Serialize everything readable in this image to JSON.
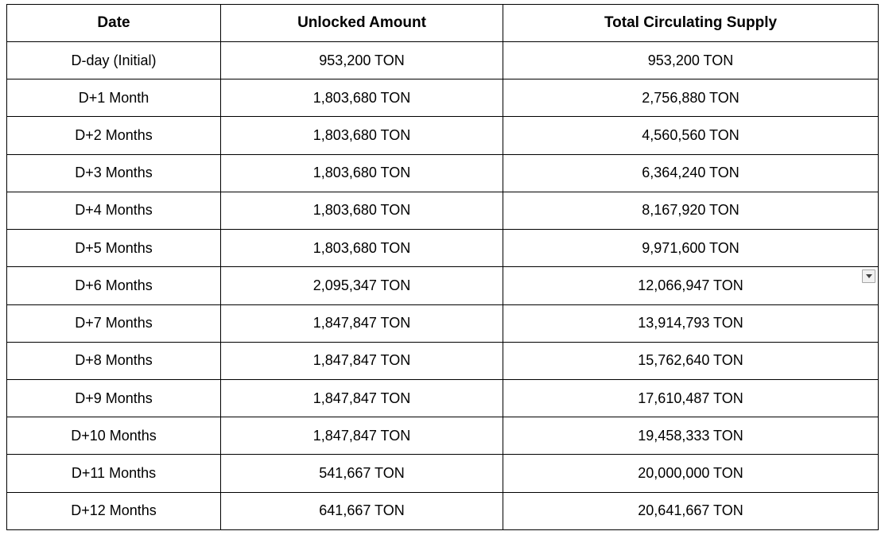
{
  "table": {
    "columns": [
      {
        "key": "date",
        "label": "Date"
      },
      {
        "key": "unlocked_amount",
        "label": "Unlocked Amount"
      },
      {
        "key": "total_circulating_supply",
        "label": "Total Circulating Supply"
      }
    ],
    "rows": [
      [
        "D-day (Initial)",
        "953,200 TON",
        "953,200 TON"
      ],
      [
        "D+1 Month",
        "1,803,680 TON",
        "2,756,880 TON"
      ],
      [
        "D+2 Months",
        "1,803,680 TON",
        "4,560,560 TON"
      ],
      [
        "D+3 Months",
        "1,803,680 TON",
        "6,364,240 TON"
      ],
      [
        "D+4 Months",
        "1,803,680 TON",
        "8,167,920 TON"
      ],
      [
        "D+5 Months",
        "1,803,680 TON",
        "9,971,600 TON"
      ],
      [
        "D+6 Months",
        "2,095,347 TON",
        "12,066,947 TON"
      ],
      [
        "D+7 Months",
        "1,847,847 TON",
        "13,914,793 TON"
      ],
      [
        "D+8 Months",
        "1,847,847 TON",
        "15,762,640 TON"
      ],
      [
        "D+9 Months",
        "1,847,847 TON",
        "17,610,487 TON"
      ],
      [
        "D+10 Months",
        "1,847,847 TON",
        "19,458,333 TON"
      ],
      [
        "D+11 Months",
        "541,667 TON",
        "20,000,000 TON"
      ],
      [
        "D+12 Months",
        "641,667 TON",
        "20,641,667 TON"
      ]
    ]
  },
  "widgets": {
    "dropdown_icon": "chevron-down-icon"
  },
  "colors": {
    "background": "#ffffff",
    "table_border": "#000000",
    "text": "#000000",
    "button_background": "#f1f1f1",
    "button_border": "#a6a6a6",
    "button_arrow": "#424242"
  }
}
